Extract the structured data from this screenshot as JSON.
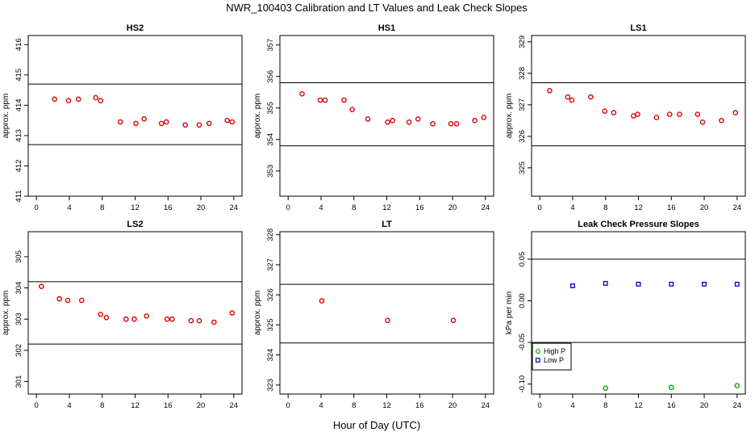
{
  "figure": {
    "title": "NWR_100403  Calibration and LT Values and Leak Check Slopes",
    "xlabel": "Hour of Day (UTC)"
  },
  "colors": {
    "point": "#dd0000",
    "high_p": "#00aa00",
    "low_p": "#0000cc",
    "axis": "#000000",
    "reference": "#000000"
  },
  "chart_data": [
    {
      "type": "scatter",
      "title": "HS2",
      "ylabel": "approx. ppm",
      "xlim": [
        -1,
        25
      ],
      "ylim": [
        411,
        416.3
      ],
      "xticks": [
        0,
        4,
        8,
        12,
        16,
        20,
        24
      ],
      "yticks": [
        411,
        412,
        413,
        414,
        415,
        416
      ],
      "reference_lines": [
        414.7,
        412.7
      ],
      "series": [
        {
          "x": [
            2.2,
            3.9,
            5.1,
            7.2,
            7.8,
            10.2,
            12.1,
            13.1,
            15.2,
            15.8,
            18.1,
            19.8,
            21.0,
            23.2,
            23.8
          ],
          "y": [
            414.2,
            414.15,
            414.2,
            414.25,
            414.15,
            413.45,
            413.4,
            413.55,
            413.4,
            413.45,
            413.35,
            413.35,
            413.4,
            413.5,
            413.45
          ],
          "marker": "circle",
          "color": "#dd0000"
        }
      ]
    },
    {
      "type": "scatter",
      "title": "HS1",
      "ylabel": "approx. ppm",
      "xlim": [
        -1,
        25
      ],
      "ylim": [
        352.2,
        357.3
      ],
      "xticks": [
        0,
        4,
        8,
        12,
        16,
        20,
        24
      ],
      "yticks": [
        353,
        354,
        355,
        356,
        357
      ],
      "reference_lines": [
        355.8,
        353.8
      ],
      "series": [
        {
          "x": [
            1.7,
            3.9,
            4.5,
            6.8,
            7.8,
            9.7,
            12.1,
            12.7,
            14.7,
            15.8,
            17.6,
            19.8,
            20.5,
            22.7,
            23.8
          ],
          "y": [
            355.45,
            355.25,
            355.25,
            355.25,
            354.95,
            354.65,
            354.55,
            354.6,
            354.55,
            354.65,
            354.5,
            354.5,
            354.5,
            354.6,
            354.7
          ],
          "marker": "circle",
          "color": "#dd0000"
        }
      ]
    },
    {
      "type": "scatter",
      "title": "LS1",
      "ylabel": "approx. ppm",
      "xlim": [
        -1,
        25
      ],
      "ylim": [
        324.1,
        329.2
      ],
      "xticks": [
        0,
        4,
        8,
        12,
        16,
        20,
        24
      ],
      "yticks": [
        325,
        326,
        327,
        328,
        329
      ],
      "reference_lines": [
        327.7,
        325.7
      ],
      "series": [
        {
          "x": [
            1.2,
            3.4,
            3.9,
            6.2,
            7.9,
            9.0,
            11.4,
            11.9,
            14.2,
            15.8,
            17.0,
            19.2,
            19.8,
            22.1,
            23.8
          ],
          "y": [
            327.45,
            327.25,
            327.15,
            327.25,
            326.8,
            326.75,
            326.65,
            326.7,
            326.6,
            326.7,
            326.7,
            326.7,
            326.45,
            326.5,
            326.75
          ],
          "marker": "circle",
          "color": "#dd0000"
        }
      ]
    },
    {
      "type": "scatter",
      "title": "LS2",
      "ylabel": "approx. ppm",
      "xlim": [
        -1,
        25
      ],
      "ylim": [
        300.6,
        305.8
      ],
      "xticks": [
        0,
        4,
        8,
        12,
        16,
        20,
        24
      ],
      "yticks": [
        301,
        302,
        303,
        304,
        305
      ],
      "reference_lines": [
        304.2,
        302.2
      ],
      "series": [
        {
          "x": [
            0.6,
            2.8,
            3.8,
            5.5,
            7.8,
            8.5,
            10.9,
            11.9,
            13.4,
            15.9,
            16.5,
            18.8,
            19.8,
            21.6,
            23.8
          ],
          "y": [
            304.05,
            303.65,
            303.6,
            303.6,
            303.15,
            303.05,
            303.0,
            303.0,
            303.1,
            303.0,
            303.0,
            302.95,
            302.95,
            302.9,
            303.2
          ],
          "marker": "circle",
          "color": "#dd0000"
        }
      ]
    },
    {
      "type": "scatter",
      "title": "LT",
      "ylabel": "approx. ppm",
      "xlim": [
        -1,
        25
      ],
      "ylim": [
        322.7,
        328.1
      ],
      "xticks": [
        0,
        4,
        8,
        12,
        16,
        20,
        24
      ],
      "yticks": [
        323,
        324,
        325,
        326,
        327,
        328
      ],
      "reference_lines": [
        326.35,
        324.4
      ],
      "series": [
        {
          "x": [
            4.1,
            12.1,
            20.1
          ],
          "y": [
            325.8,
            325.15,
            325.15
          ],
          "marker": "circle",
          "color": "#dd0000"
        }
      ]
    },
    {
      "type": "scatter",
      "title": "Leak Check Pressure Slopes",
      "ylabel": "kPa per min",
      "xlim": [
        -1,
        25
      ],
      "ylim": [
        -0.112,
        0.083
      ],
      "xticks": [
        0,
        4,
        8,
        12,
        16,
        20,
        24
      ],
      "yticks": [
        -0.1,
        -0.05,
        0.0,
        0.05
      ],
      "ytick_labels": [
        "-0.10",
        "-0.05",
        "0.00",
        "0.05"
      ],
      "reference_lines": [
        0.05,
        -0.05
      ],
      "legend": {
        "position": "bottom-left",
        "entries": [
          "High P",
          "Low P"
        ]
      },
      "series": [
        {
          "name": "High P",
          "x": [
            8,
            16,
            24
          ],
          "y": [
            -0.105,
            -0.104,
            -0.102
          ],
          "marker": "circle",
          "color": "#00aa00"
        },
        {
          "name": "Low P",
          "x": [
            4,
            8,
            12,
            16,
            20,
            24
          ],
          "y": [
            0.018,
            0.021,
            0.02,
            0.02,
            0.02,
            0.02
          ],
          "marker": "square",
          "color": "#0000cc"
        }
      ]
    }
  ]
}
